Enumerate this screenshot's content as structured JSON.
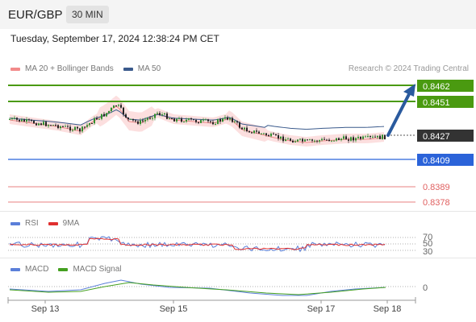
{
  "header": {
    "pair": "EUR/GBP",
    "timeframe": "30 MIN"
  },
  "datetime": "Tuesday, September 17, 2024 12:38:24 PM CET",
  "legend_main": [
    {
      "label": "MA 20 + Bollinger Bands",
      "color": "#f28a8a"
    },
    {
      "label": "MA 50",
      "color": "#3a5a8c"
    }
  ],
  "credit": "Research © 2024 Trading Central",
  "legend_rsi": [
    {
      "label": "RSI",
      "color": "#5b7fd9"
    },
    {
      "label": "9MA",
      "color": "#e03030"
    }
  ],
  "legend_macd": [
    {
      "label": "MACD",
      "color": "#5b7fd9"
    },
    {
      "label": "MACD Signal",
      "color": "#44a020"
    }
  ],
  "colors": {
    "resistance": "#4a9a10",
    "pivot": "#2b63d9",
    "support": "#e98080",
    "arrow": "#2a5a9e",
    "current": "#333333"
  },
  "chart_data": {
    "type": "candlestick",
    "levels": {
      "resistance": [
        0.8462,
        0.8451
      ],
      "current": 0.8427,
      "pivot": 0.8409,
      "support": [
        0.8389,
        0.8378
      ]
    },
    "price_labels": [
      "0.8462",
      "0.8451",
      "0.8427",
      "0.8409",
      "0.8389",
      "0.8378"
    ],
    "x_labels": [
      "Sep 13",
      "Sep 15",
      "Sep 17",
      "Sep 18"
    ],
    "rsi_levels": [
      "70",
      "50",
      "30"
    ],
    "macd_levels": [
      "0"
    ]
  }
}
